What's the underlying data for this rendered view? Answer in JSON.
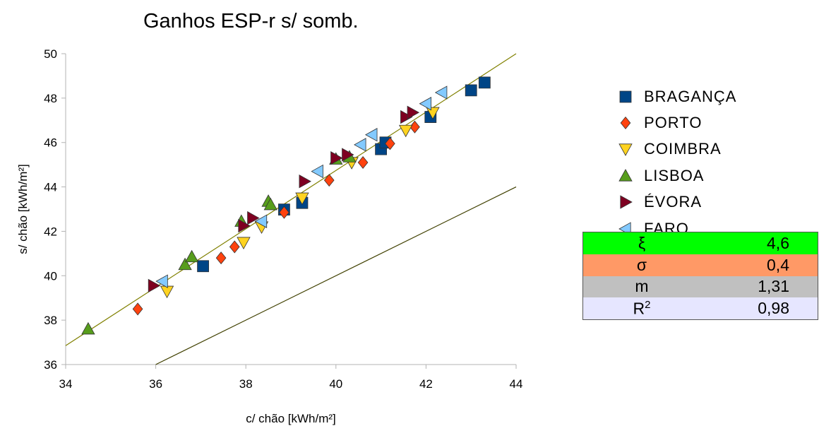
{
  "chart_data": {
    "type": "scatter",
    "title": "Ganhos ESP-r s/ somb.",
    "xlabel": "c/ chão [kWh/m²]",
    "ylabel": "s/ chão [kWh/m²]",
    "xlim": [
      34,
      44
    ],
    "ylim": [
      36,
      50
    ],
    "x_ticks": [
      "34",
      "36",
      "38",
      "40",
      "42",
      "44"
    ],
    "y_ticks": [
      "36",
      "38",
      "40",
      "42",
      "44",
      "46",
      "48",
      "50"
    ],
    "legend_position": "right",
    "series": [
      {
        "name": "BRAGANÇA",
        "marker": "square",
        "color": "#004586",
        "points": [
          [
            37.05,
            40.43
          ],
          [
            38.85,
            42.98
          ],
          [
            39.25,
            43.28
          ],
          [
            41.0,
            45.7
          ],
          [
            41.1,
            46.0
          ],
          [
            42.1,
            47.15
          ],
          [
            43.0,
            48.35
          ],
          [
            43.3,
            48.7
          ]
        ]
      },
      {
        "name": "PORTO",
        "marker": "diamond",
        "color": "#ff420e",
        "points": [
          [
            35.6,
            38.5
          ],
          [
            37.45,
            40.8
          ],
          [
            37.75,
            41.3
          ],
          [
            38.85,
            42.85
          ],
          [
            39.85,
            44.3
          ],
          [
            40.6,
            45.1
          ],
          [
            41.2,
            45.95
          ],
          [
            41.75,
            46.7
          ]
        ]
      },
      {
        "name": "COIMBRA",
        "marker": "triangle-down",
        "color": "#ffd320",
        "points": [
          [
            36.25,
            39.3
          ],
          [
            37.95,
            41.5
          ],
          [
            38.35,
            42.2
          ],
          [
            39.25,
            43.5
          ],
          [
            40.35,
            45.1
          ],
          [
            41.55,
            46.55
          ],
          [
            42.15,
            47.35
          ]
        ]
      },
      {
        "name": "LISBOA",
        "marker": "triangle-up",
        "color": "#579d1c",
        "points": [
          [
            34.5,
            37.6
          ],
          [
            36.65,
            40.5
          ],
          [
            36.8,
            40.85
          ],
          [
            37.9,
            42.45
          ],
          [
            38.5,
            43.35
          ],
          [
            38.55,
            43.2
          ],
          [
            40.0,
            45.25
          ],
          [
            40.3,
            45.35
          ]
        ]
      },
      {
        "name": "ÉVORA",
        "marker": "triangle-right",
        "color": "#7e0021",
        "points": [
          [
            35.95,
            39.55
          ],
          [
            37.95,
            42.25
          ],
          [
            38.15,
            42.6
          ],
          [
            39.3,
            44.25
          ],
          [
            40.0,
            45.3
          ],
          [
            40.25,
            45.45
          ],
          [
            41.55,
            47.15
          ],
          [
            41.7,
            47.35
          ]
        ]
      },
      {
        "name": "FARO",
        "marker": "triangle-left",
        "color": "#83caff",
        "points": [
          [
            36.15,
            39.75
          ],
          [
            38.35,
            42.45
          ],
          [
            39.6,
            44.7
          ],
          [
            40.55,
            45.9
          ],
          [
            40.8,
            46.35
          ],
          [
            42.0,
            47.75
          ],
          [
            42.35,
            48.25
          ]
        ]
      }
    ],
    "lines": [
      {
        "kind": "fit",
        "color": "#808000",
        "x": [
          34,
          44
        ],
        "y": [
          36.85,
          50.0
        ]
      },
      {
        "kind": "reference",
        "color": "#404000",
        "x": [
          36,
          44
        ],
        "y": [
          36.0,
          44.0
        ]
      }
    ]
  },
  "stats": [
    {
      "symbol": "ξ",
      "value": "4,6",
      "color": "#00ff00"
    },
    {
      "symbol": "σ",
      "value": "0,4",
      "color": "#ff9966"
    },
    {
      "symbol": "m",
      "value": "1,31",
      "color": "#c0c0c0"
    },
    {
      "symbol": "R",
      "symbol_sup": "2",
      "value": "0,98",
      "color": "#e6e6ff"
    }
  ]
}
